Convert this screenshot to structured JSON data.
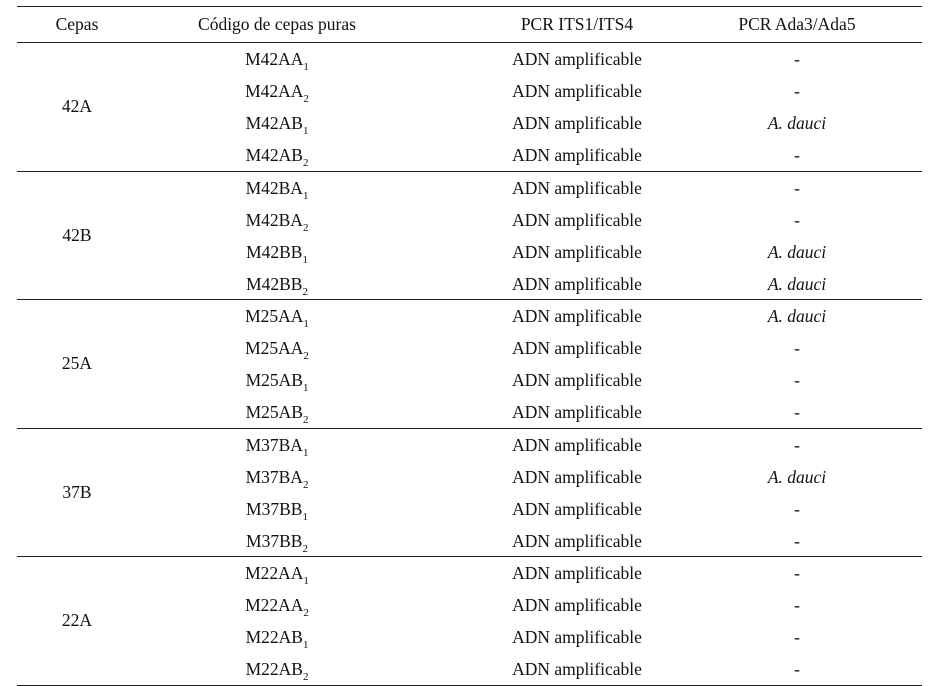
{
  "headers": {
    "cepas": "Cepas",
    "codigo": "Código de cepas puras",
    "pcr_its": "PCR ITS1/ITS4",
    "pcr_ada": "PCR Ada3/Ada5"
  },
  "groups": [
    {
      "cepa": "42A",
      "rows": [
        {
          "code": "M42AA",
          "sub": "1",
          "its": "ADN amplificable",
          "ada": "-"
        },
        {
          "code": "M42AA",
          "sub": "2",
          "its": "ADN amplificable",
          "ada": "-"
        },
        {
          "code": "M42AB",
          "sub": "1",
          "its": "ADN amplificable",
          "ada": "A. dauci"
        },
        {
          "code": "M42AB",
          "sub": "2",
          "its": "ADN amplificable",
          "ada": "-"
        }
      ]
    },
    {
      "cepa": "42B",
      "rows": [
        {
          "code": "M42BA",
          "sub": "1",
          "its": "ADN amplificable",
          "ada": "-"
        },
        {
          "code": "M42BA",
          "sub": "2",
          "its": "ADN amplificable",
          "ada": "-"
        },
        {
          "code": "M42BB",
          "sub": "1",
          "its": "ADN amplificable",
          "ada": "A. dauci"
        },
        {
          "code": "M42BB",
          "sub": "2",
          "its": "ADN amplificable",
          "ada": "A. dauci"
        }
      ]
    },
    {
      "cepa": "25A",
      "rows": [
        {
          "code": "M25AA",
          "sub": "1",
          "its": "ADN amplificable",
          "ada": "A. dauci"
        },
        {
          "code": "M25AA",
          "sub": "2",
          "its": "ADN amplificable",
          "ada": "-"
        },
        {
          "code": "M25AB",
          "sub": "1",
          "its": "ADN amplificable",
          "ada": "-"
        },
        {
          "code": "M25AB",
          "sub": "2",
          "its": "ADN amplificable",
          "ada": "-"
        }
      ]
    },
    {
      "cepa": "37B",
      "rows": [
        {
          "code": "M37BA",
          "sub": "1",
          "its": "ADN amplificable",
          "ada": "-"
        },
        {
          "code": "M37BA",
          "sub": "2",
          "its": "ADN amplificable",
          "ada": "A. dauci"
        },
        {
          "code": "M37BB",
          "sub": "1",
          "its": "ADN amplificable",
          "ada": "-"
        },
        {
          "code": "M37BB",
          "sub": "2",
          "its": "ADN amplificable",
          "ada": "-"
        }
      ]
    },
    {
      "cepa": "22A",
      "rows": [
        {
          "code": "M22AA",
          "sub": "1",
          "its": "ADN amplificable",
          "ada": "-"
        },
        {
          "code": "M22AA",
          "sub": "2",
          "its": "ADN amplificable",
          "ada": "-"
        },
        {
          "code": "M22AB",
          "sub": "1",
          "its": "ADN amplificable",
          "ada": "-"
        },
        {
          "code": "M22AB",
          "sub": "2",
          "its": "ADN amplificable",
          "ada": "-"
        }
      ]
    }
  ]
}
